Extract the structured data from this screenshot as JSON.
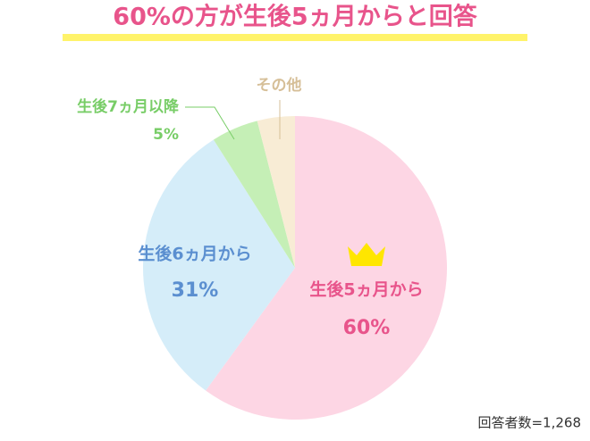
{
  "chart_data": {
    "type": "pie",
    "title": "60%の方が生後5ヵ月からと回答",
    "note": "回答者数=1,268",
    "categories": [
      "生後5ヵ月から",
      "生後6ヵ月から",
      "生後7ヵ月以降",
      "その他"
    ],
    "values": [
      60,
      31,
      5,
      4
    ],
    "value_labels": [
      "60%",
      "31%",
      "5%",
      null
    ],
    "colors": [
      "#fdd6e4",
      "#d5edf9",
      "#c5efb6",
      "#f8ecd5"
    ],
    "label_colors": [
      "#e8548b",
      "#5b8fd0",
      "#78cd67",
      "#d6bf98"
    ]
  }
}
